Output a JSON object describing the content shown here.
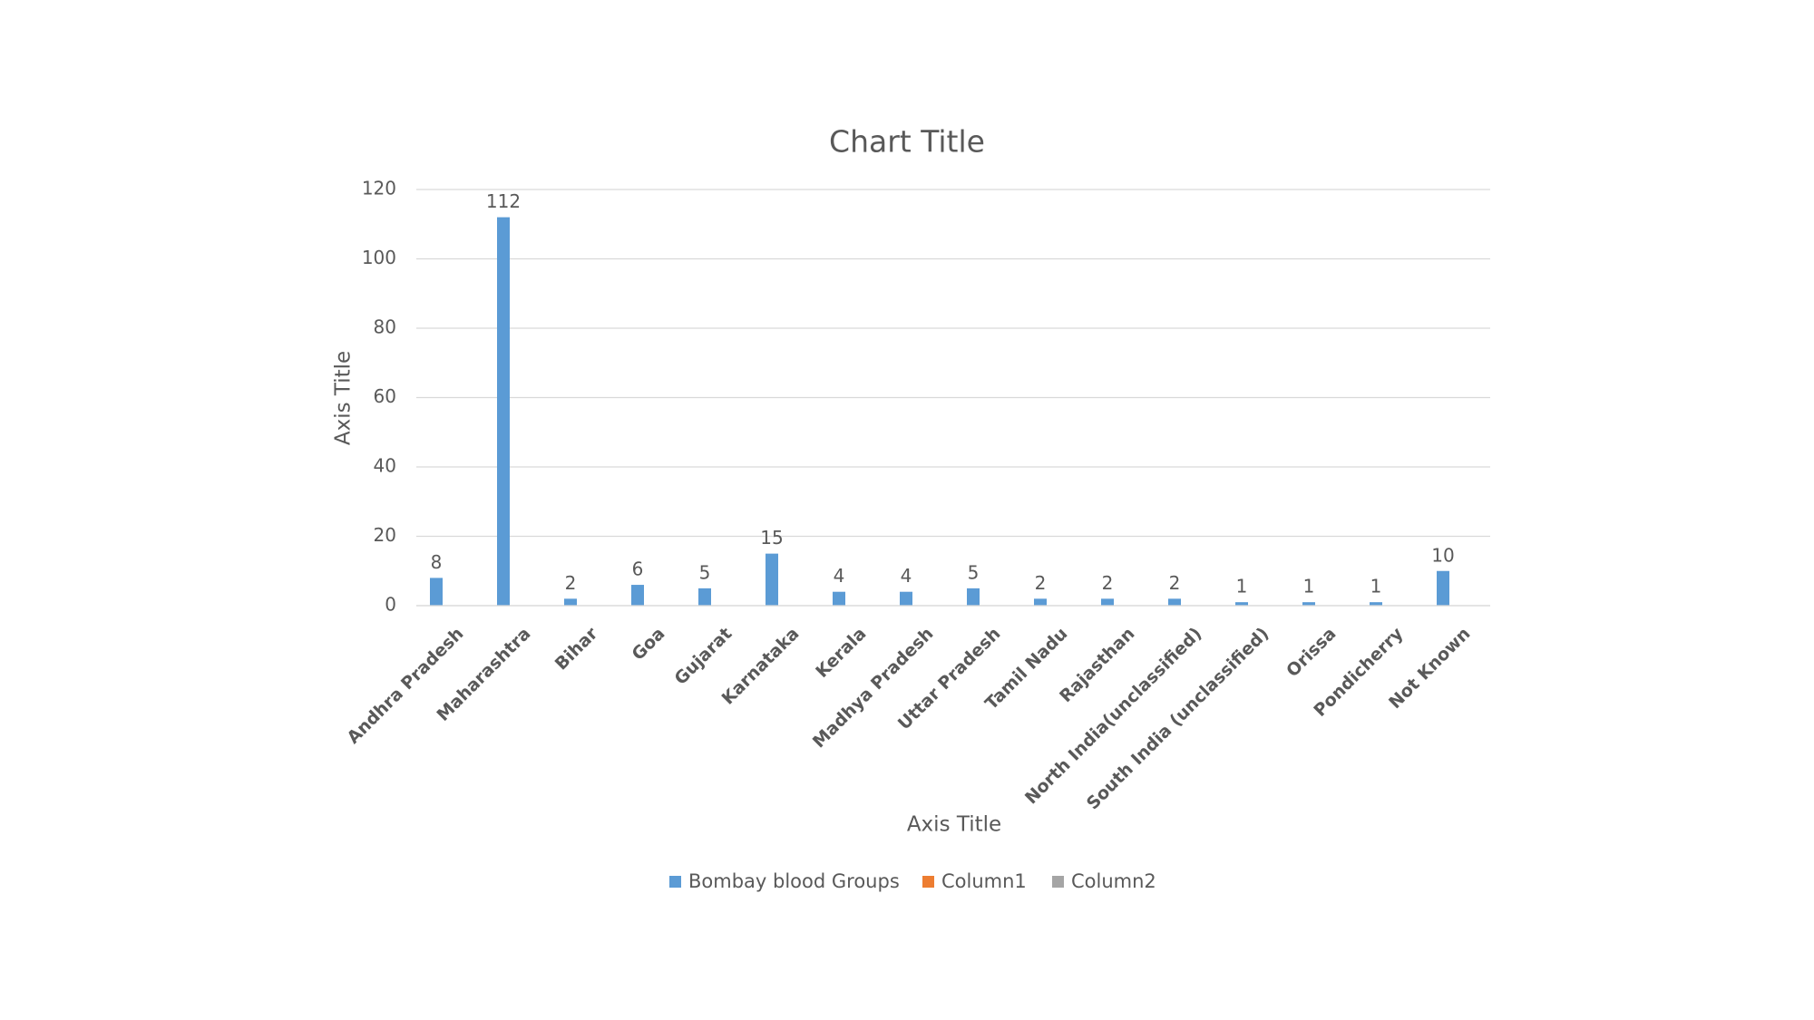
{
  "chart_data": {
    "type": "bar",
    "title": "Chart Title",
    "x_axis_title": "Axis Title",
    "y_axis_title": "Axis Title",
    "categories": [
      "Andhra Pradesh",
      "Maharashtra",
      "Bihar",
      "Goa",
      "Gujarat",
      "Karnataka",
      "Kerala",
      "Madhya Pradesh",
      "Uttar Pradesh",
      "Tamil Nadu",
      "Rajasthan",
      "North India(unclassified)",
      "South India (unclassified)",
      "Orissa",
      "Pondicherry",
      "Not Known"
    ],
    "series": [
      {
        "name": "Bombay blood Groups",
        "color": "#5b9bd5",
        "values": [
          8,
          112,
          2,
          6,
          5,
          15,
          4,
          4,
          5,
          2,
          2,
          2,
          1,
          1,
          1,
          10
        ]
      },
      {
        "name": "Column1",
        "color": "#ed7d31",
        "values": [
          null,
          null,
          null,
          null,
          null,
          null,
          null,
          null,
          null,
          null,
          null,
          null,
          null,
          null,
          null,
          null
        ]
      },
      {
        "name": "Column2",
        "color": "#a5a5a5",
        "values": [
          null,
          null,
          null,
          null,
          null,
          null,
          null,
          null,
          null,
          null,
          null,
          null,
          null,
          null,
          null,
          null
        ]
      }
    ],
    "ylim": [
      0,
      120
    ],
    "yticks": [
      0,
      20,
      40,
      60,
      80,
      100,
      120
    ],
    "grid": true,
    "data_labels": true,
    "legend": "bottom"
  }
}
